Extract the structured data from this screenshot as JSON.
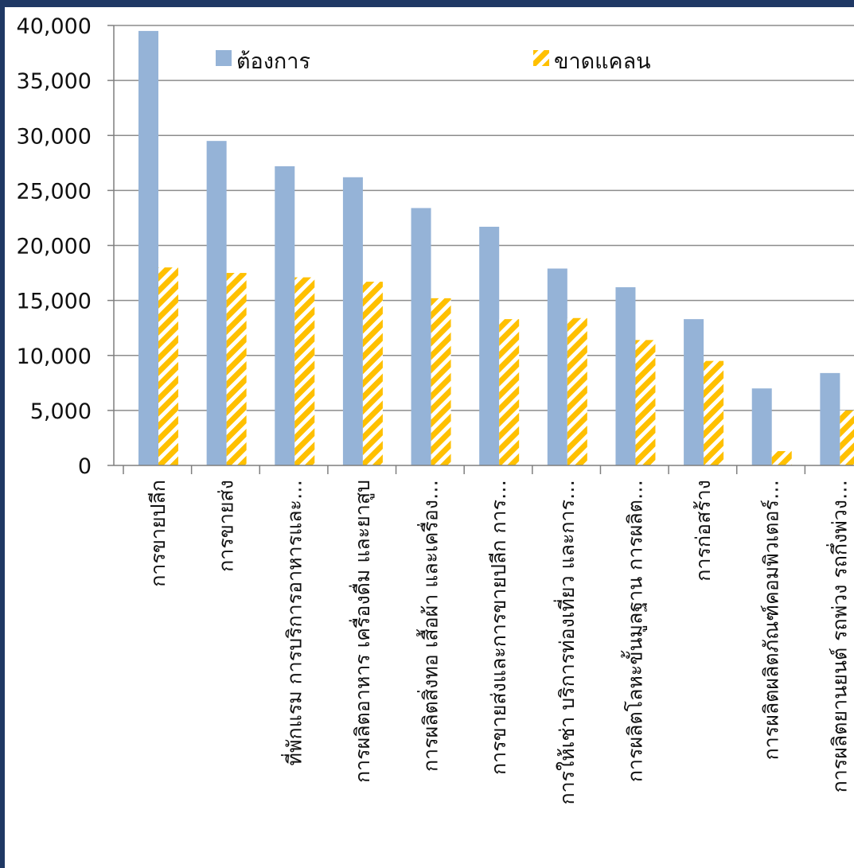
{
  "chart_data": {
    "type": "bar",
    "title": "",
    "xlabel": "",
    "ylabel": "",
    "ylim": [
      0,
      40000
    ],
    "yticks": [
      0,
      5000,
      10000,
      15000,
      20000,
      25000,
      30000,
      35000,
      40000
    ],
    "ytick_labels": [
      "0",
      "5,000",
      "10,000",
      "15,000",
      "20,000",
      "25,000",
      "30,000",
      "35,000",
      "40,000"
    ],
    "grid": true,
    "legend_position": "top",
    "categories": [
      "การขายปลีก",
      "การขายส่ง",
      "ที่พักแรม การบริการอาหารและ…",
      "การผลิตอาหาร เครื่องดื่ม และยาสูบ",
      "การผลิตสิ่งทอ เสื้อผ้า และเครื่อง…",
      "การขายส่งและการขายปลีก การ…",
      "การให้เช่า บริการท่องเที่ยว และการ…",
      "การผลิตโลหะขั้นมูลฐาน การผลิต…",
      "การก่อสร้าง",
      "การผลิตผลิตภัณฑ์คอมพิวเตอร์…",
      "การผลิตยานยนต์ รถพ่วง รถกึ่งพ่วง…"
    ],
    "series": [
      {
        "name": "ต้องการ",
        "color": "#95b3d7",
        "pattern": "solid",
        "values": [
          39500,
          29500,
          27200,
          26200,
          23400,
          21700,
          17900,
          16200,
          13300,
          7000,
          8400
        ]
      },
      {
        "name": "ขาดแคลน",
        "color": "#ffc000",
        "pattern": "diagonal-stripes",
        "values": [
          18000,
          17500,
          17100,
          16700,
          15200,
          13300,
          13400,
          11400,
          9500,
          1300,
          5000
        ]
      }
    ]
  },
  "colors": {
    "frame_border": "#1f3864",
    "axis": "#7f7f7f",
    "grid": "#8c8c8c"
  }
}
